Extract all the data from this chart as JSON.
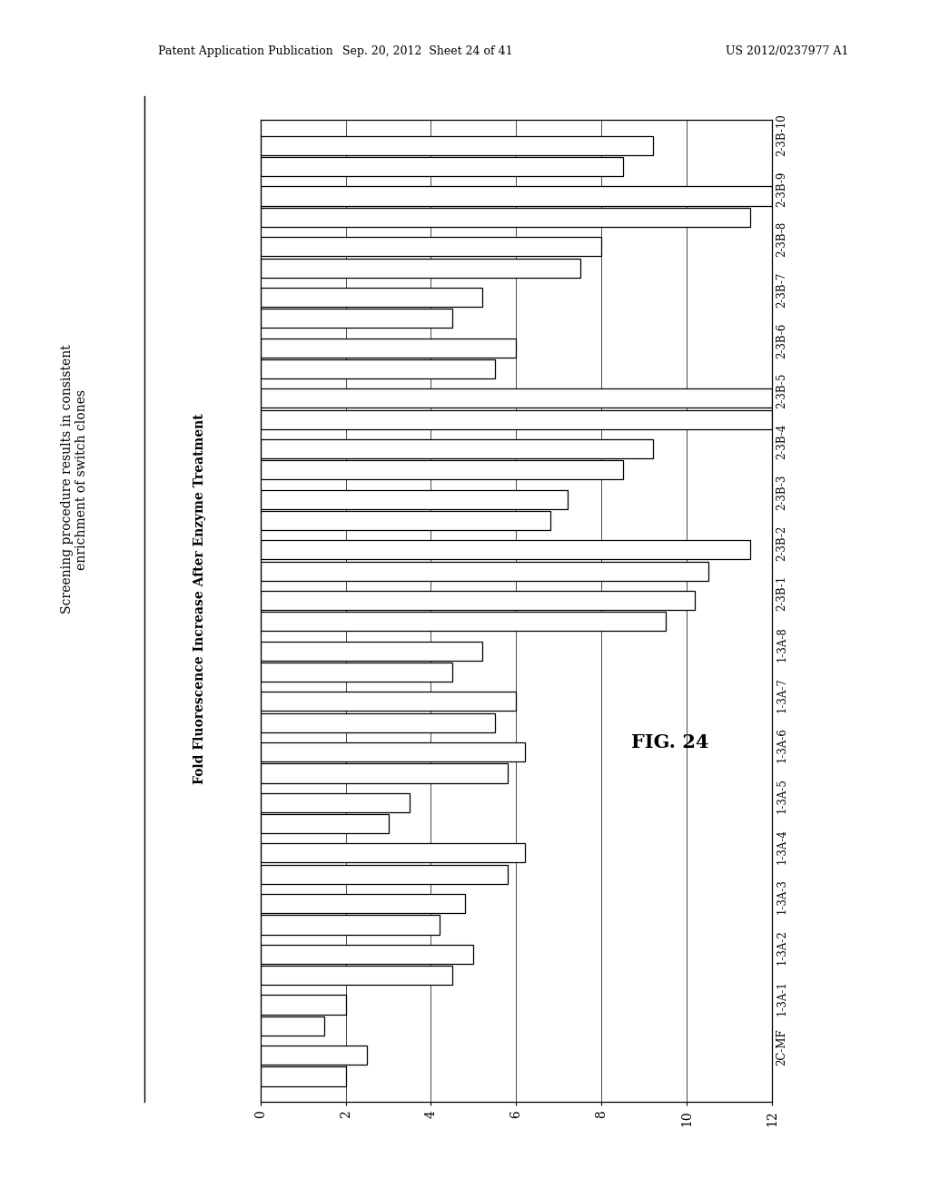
{
  "categories": [
    "2C-MF",
    "1-3A-1",
    "1-3A-2",
    "1-3A-3",
    "1-3A-4",
    "1-3A-5",
    "1-3A-6",
    "1-3A-7",
    "1-3A-8",
    "2-3B-1",
    "2-3B-2",
    "2-3B-3",
    "2-3B-4",
    "2-3B-5",
    "2-3B-6",
    "2-3B-7",
    "2-3B-8",
    "2-3B-9",
    "2-3B-10"
  ],
  "bar1_values": [
    2.0,
    1.5,
    4.5,
    4.2,
    5.8,
    3.0,
    5.8,
    5.5,
    4.5,
    9.5,
    10.5,
    6.8,
    8.5,
    12.0,
    5.5,
    4.5,
    7.5,
    11.5,
    8.5
  ],
  "bar2_values": [
    2.5,
    2.0,
    5.0,
    4.8,
    6.2,
    3.5,
    6.2,
    6.0,
    5.2,
    10.2,
    11.5,
    7.2,
    9.2,
    12.0,
    6.0,
    5.2,
    8.0,
    12.0,
    9.2
  ],
  "xlabel": "Fold Fluorescence Increase After Enzyme Treatment",
  "title_line1": "Screening procedure results in consistent",
  "title_line2": "enrichment of switch clones",
  "fig_label": "FIG. 24",
  "xlim": [
    0,
    12
  ],
  "xticks": [
    0,
    2,
    4,
    6,
    8,
    10,
    12
  ],
  "bar_facecolor": "white",
  "bar_edgecolor": "black",
  "bar_height": 0.38,
  "bar_gap": 0.04,
  "background_color": "white",
  "header_left": "Patent Application Publication",
  "header_mid": "Sep. 20, 2012  Sheet 24 of 41",
  "header_right": "US 2012/0237977 A1"
}
